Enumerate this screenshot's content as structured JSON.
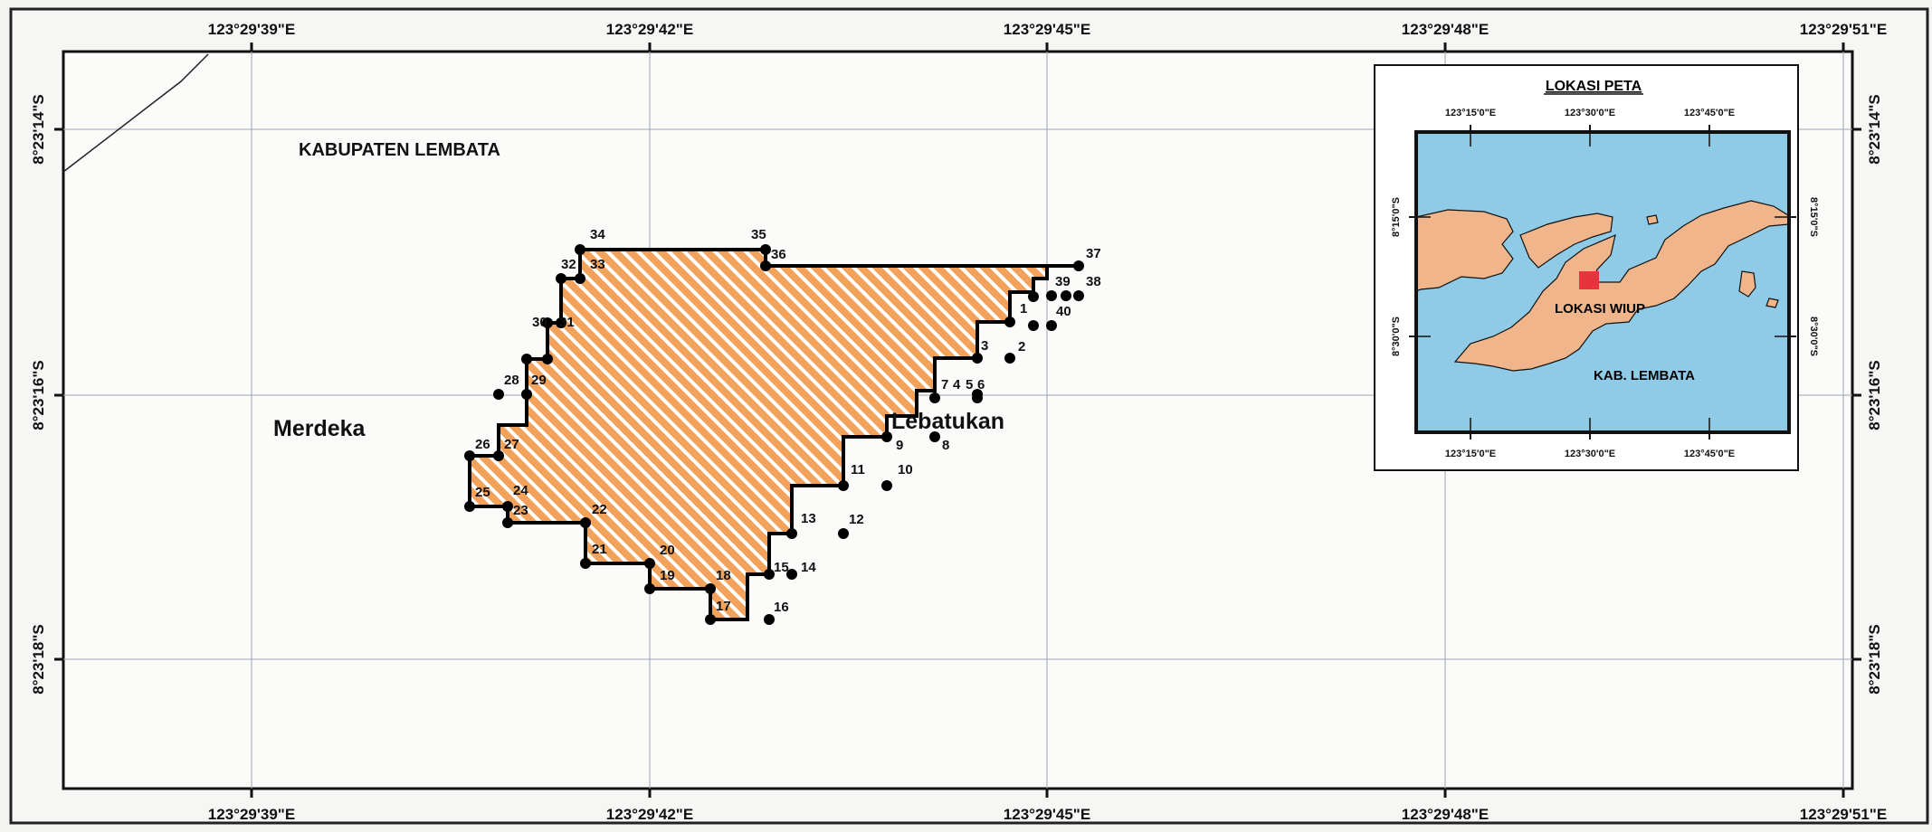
{
  "map": {
    "top_ticks": [
      "123°29'39\"E",
      "123°29'42\"E",
      "123°29'45\"E",
      "123°29'48\"E",
      "123°29'51\"E"
    ],
    "bottom_ticks": [
      "123°29'39\"E",
      "123°29'42\"E",
      "123°29'45\"E",
      "123°29'48\"E",
      "123°29'51\"E"
    ],
    "left_ticks": [
      "8°23'14\"S",
      "8°23'16\"S",
      "8°23'18\"S"
    ],
    "right_ticks": [
      "8°23'14\"S",
      "8°23'16\"S",
      "8°23'18\"S"
    ],
    "labels": {
      "kabupaten": "KABUPATEN LEMBATA",
      "merdeka": "Merdeka",
      "lebatukan": "Lebatukan"
    },
    "colors": {
      "polygon_fill": "#f2a25a",
      "hatch": "#ffffff",
      "outline": "#000000",
      "sea": "#8fcbe6",
      "land": "#f0b58a",
      "marker": "#e8323c",
      "grid": "#9aa3b5"
    },
    "points": [
      "1",
      "2",
      "3",
      "4",
      "5",
      "6",
      "7",
      "8",
      "9",
      "10",
      "11",
      "12",
      "13",
      "14",
      "15",
      "16",
      "17",
      "18",
      "19",
      "20",
      "21",
      "22",
      "23",
      "24",
      "25",
      "26",
      "27",
      "28",
      "29",
      "30",
      "31",
      "32",
      "33",
      "34",
      "35",
      "36",
      "37",
      "38",
      "39",
      "40"
    ]
  },
  "inset": {
    "title": "LOKASI PETA",
    "top_ticks": [
      "123°15'0\"E",
      "123°30'0\"E",
      "123°45'0\"E"
    ],
    "bottom_ticks": [
      "123°15'0\"E",
      "123°30'0\"E",
      "123°45'0\"E"
    ],
    "left_ticks": [
      "8°15'0\"S",
      "8°30'0\"S"
    ],
    "right_ticks": [
      "8°15'0\"S",
      "8°30'0\"S"
    ],
    "location_label": "LOKASI WIUP",
    "regency_label": "KAB. LEMBATA"
  }
}
